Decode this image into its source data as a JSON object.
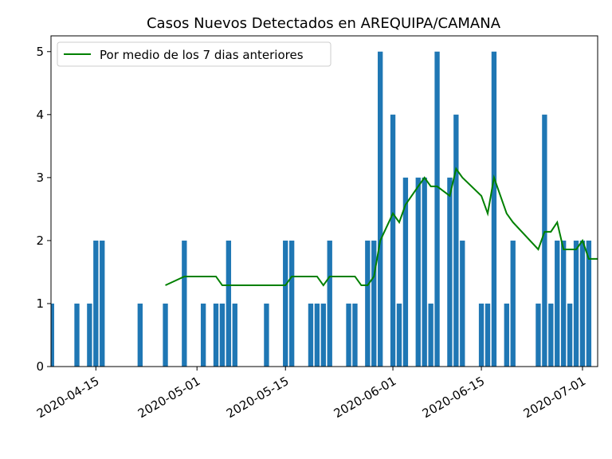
{
  "chart_data": {
    "type": "bar",
    "title": "Casos Nuevos Detectados en AREQUIPA/CAMANA",
    "xlabel": "",
    "ylabel": "",
    "ylim": [
      0,
      5.25
    ],
    "xlim": [
      "2020-04-08",
      "2020-07-03"
    ],
    "y_ticks": [
      0,
      1,
      2,
      3,
      4,
      5
    ],
    "x_ticks": [
      "2020-04-15",
      "2020-05-01",
      "2020-05-15",
      "2020-06-01",
      "2020-06-15",
      "2020-07-01"
    ],
    "grid": false,
    "legend_position": "top-left",
    "colors": {
      "bars": "#1f77b4",
      "line": "#008000"
    },
    "series": [
      {
        "type": "bar",
        "points": [
          [
            "2020-04-08",
            1
          ],
          [
            "2020-04-12",
            1
          ],
          [
            "2020-04-14",
            1
          ],
          [
            "2020-04-15",
            2
          ],
          [
            "2020-04-16",
            2
          ],
          [
            "2020-04-22",
            1
          ],
          [
            "2020-04-26",
            1
          ],
          [
            "2020-04-29",
            2
          ],
          [
            "2020-05-02",
            1
          ],
          [
            "2020-05-04",
            1
          ],
          [
            "2020-05-05",
            1
          ],
          [
            "2020-05-06",
            2
          ],
          [
            "2020-05-07",
            1
          ],
          [
            "2020-05-12",
            1
          ],
          [
            "2020-05-15",
            2
          ],
          [
            "2020-05-16",
            2
          ],
          [
            "2020-05-19",
            1
          ],
          [
            "2020-05-20",
            1
          ],
          [
            "2020-05-21",
            1
          ],
          [
            "2020-05-22",
            2
          ],
          [
            "2020-05-25",
            1
          ],
          [
            "2020-05-26",
            1
          ],
          [
            "2020-05-28",
            2
          ],
          [
            "2020-05-29",
            2
          ],
          [
            "2020-05-30",
            5
          ],
          [
            "2020-06-01",
            4
          ],
          [
            "2020-06-02",
            1
          ],
          [
            "2020-06-03",
            3
          ],
          [
            "2020-06-05",
            3
          ],
          [
            "2020-06-06",
            3
          ],
          [
            "2020-06-07",
            1
          ],
          [
            "2020-06-08",
            5
          ],
          [
            "2020-06-10",
            3
          ],
          [
            "2020-06-11",
            4
          ],
          [
            "2020-06-12",
            2
          ],
          [
            "2020-06-15",
            1
          ],
          [
            "2020-06-16",
            1
          ],
          [
            "2020-06-17",
            5
          ],
          [
            "2020-06-19",
            1
          ],
          [
            "2020-06-20",
            2
          ],
          [
            "2020-06-24",
            1
          ],
          [
            "2020-06-25",
            4
          ],
          [
            "2020-06-26",
            1
          ],
          [
            "2020-06-27",
            2
          ],
          [
            "2020-06-28",
            2
          ],
          [
            "2020-06-29",
            1
          ],
          [
            "2020-06-30",
            2
          ],
          [
            "2020-07-01",
            2
          ],
          [
            "2020-07-02",
            2
          ],
          [
            "2020-07-04",
            1
          ]
        ]
      },
      {
        "type": "line",
        "name": "Por medio de los 7 dias anteriores",
        "points": [
          [
            "2020-04-26",
            1.29
          ],
          [
            "2020-04-29",
            1.43
          ],
          [
            "2020-05-04",
            1.43
          ],
          [
            "2020-05-05",
            1.29
          ],
          [
            "2020-05-14",
            1.29
          ],
          [
            "2020-05-15",
            1.29
          ],
          [
            "2020-05-16",
            1.43
          ],
          [
            "2020-05-20",
            1.43
          ],
          [
            "2020-05-21",
            1.29
          ],
          [
            "2020-05-22",
            1.43
          ],
          [
            "2020-05-26",
            1.43
          ],
          [
            "2020-05-27",
            1.29
          ],
          [
            "2020-05-28",
            1.29
          ],
          [
            "2020-05-29",
            1.43
          ],
          [
            "2020-05-30",
            2.0
          ],
          [
            "2020-06-01",
            2.43
          ],
          [
            "2020-06-02",
            2.29
          ],
          [
            "2020-06-03",
            2.57
          ],
          [
            "2020-06-05",
            2.86
          ],
          [
            "2020-06-06",
            3.0
          ],
          [
            "2020-06-07",
            2.86
          ],
          [
            "2020-06-08",
            2.86
          ],
          [
            "2020-06-10",
            2.71
          ],
          [
            "2020-06-11",
            3.14
          ],
          [
            "2020-06-12",
            3.0
          ],
          [
            "2020-06-15",
            2.71
          ],
          [
            "2020-06-16",
            2.43
          ],
          [
            "2020-06-17",
            3.0
          ],
          [
            "2020-06-19",
            2.43
          ],
          [
            "2020-06-20",
            2.29
          ],
          [
            "2020-06-24",
            1.86
          ],
          [
            "2020-06-25",
            2.14
          ],
          [
            "2020-06-26",
            2.14
          ],
          [
            "2020-06-27",
            2.29
          ],
          [
            "2020-06-28",
            1.86
          ],
          [
            "2020-06-29",
            1.86
          ],
          [
            "2020-06-30",
            1.86
          ],
          [
            "2020-07-01",
            2.0
          ],
          [
            "2020-07-02",
            1.71
          ],
          [
            "2020-07-04",
            1.71
          ]
        ]
      }
    ]
  }
}
